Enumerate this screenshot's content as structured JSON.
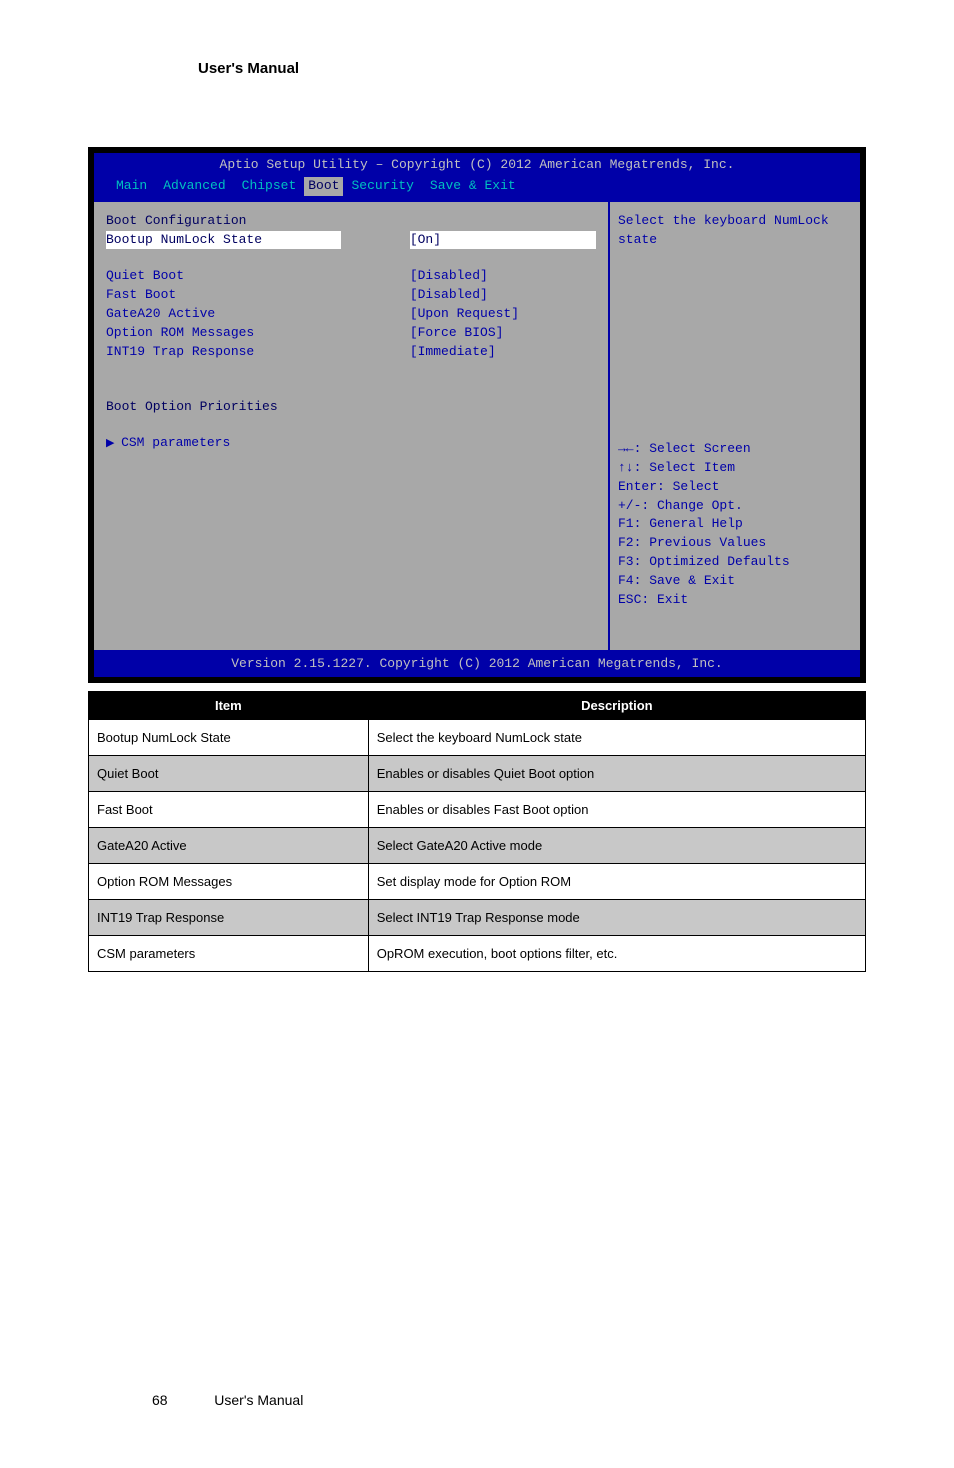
{
  "pageHeader": "User's Manual",
  "bios": {
    "titleBar": "Aptio Setup Utility – Copyright (C) 2012 American Megatrends, Inc.",
    "tabs": [
      "Main",
      "Advanced",
      "Chipset",
      "Boot",
      "Security",
      "Save & Exit"
    ],
    "activeTabIndex": 3,
    "sectionHeader": "Boot Configuration",
    "selectedRow": {
      "label": "Bootup NumLock State",
      "value": "[On]"
    },
    "rows": [
      {
        "label": "Quiet Boot",
        "value": "[Disabled]"
      },
      {
        "label": "Fast Boot",
        "value": "[Disabled]"
      },
      {
        "label": "GateA20 Active",
        "value": "[Upon Request]"
      },
      {
        "label": "Option ROM Messages",
        "value": "[Force BIOS]"
      },
      {
        "label": "INT19 Trap Response",
        "value": "[Immediate]"
      }
    ],
    "subSectionHeader": "Boot Option Priorities",
    "submenu": "CSM parameters",
    "helpText": "Select the keyboard NumLock state",
    "keys": [
      "→←: Select Screen",
      "↑↓: Select Item",
      "Enter: Select",
      "+/-: Change Opt.",
      "F1: General Help",
      "F2: Previous Values",
      "F3: Optimized Defaults",
      "F4: Save & Exit",
      "ESC: Exit"
    ],
    "footer": "Version 2.15.1227. Copyright (C) 2012 American Megatrends, Inc."
  },
  "descTable": {
    "columns": [
      "Item",
      "Description"
    ],
    "rows": [
      [
        "Bootup NumLock State",
        "Select the keyboard NumLock state"
      ],
      [
        "Quiet Boot",
        "Enables or disables Quiet Boot option"
      ],
      [
        "Fast Boot",
        "Enables or disables Fast Boot option"
      ],
      [
        "GateA20 Active",
        "Select GateA20 Active mode"
      ],
      [
        "Option ROM Messages",
        "Set display mode for Option ROM"
      ],
      [
        "INT19 Trap Response",
        "Select INT19 Trap Response mode"
      ],
      [
        "CSM parameters",
        "OpROM execution, boot options filter, etc."
      ]
    ]
  },
  "pageNumber": "68",
  "footerText": "User's Manual",
  "colors": {
    "biosBlue": "#0000a8",
    "biosGray": "#a8a8a8",
    "biosCyan": "#00c0c0",
    "biosLightGray": "#c0c0c0",
    "tableAlt": "#c8c8c8"
  }
}
